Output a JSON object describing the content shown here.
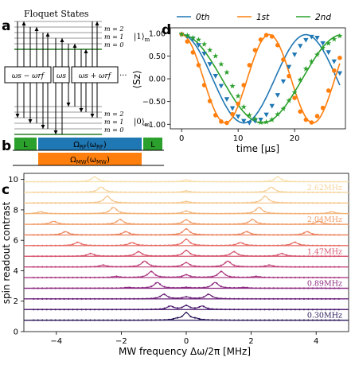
{
  "panels": {
    "a": {
      "letter": "a",
      "title": "Floquet States",
      "state_upper": "|1⟩",
      "state_upper_sub": "m",
      "state_lower": "|0⟩",
      "state_lower_sub": "m",
      "upper_levels": [
        "m = 2",
        "m = 1",
        "m = 0"
      ],
      "lower_levels": [
        "m = 2",
        "m = 1",
        "m = 0"
      ],
      "boxes": [
        "ωs − ωrf",
        "ωs",
        "ωs + ωrf"
      ],
      "ellipsis": "···"
    },
    "b": {
      "letter": "b",
      "left_label": "L",
      "right_label": "L",
      "rf_label": "ΩRF(ωRF)",
      "mw_label": "ΩMW(ωMW)",
      "colors": {
        "green": "#2ca02c",
        "blue": "#1f77b4",
        "orange": "#ff7f0e"
      }
    }
  },
  "chart_data": [
    {
      "panel": "d",
      "letter": "d",
      "type": "line",
      "xlabel": "time [μs]",
      "ylabel": "⟨Sz⟩",
      "xlim": [
        -2,
        29
      ],
      "ylim": [
        -1.1,
        1.12
      ],
      "xticks": [
        0,
        10,
        20
      ],
      "yticks": [
        1.0,
        0.5,
        0.0,
        -0.5,
        -1.0
      ],
      "ytick_labels": [
        "1.00",
        "0.50",
        "0.00",
        "−0.50",
        "−1.00"
      ],
      "legend_position": "top",
      "series": [
        {
          "name": "0th",
          "color": "#1f77b4",
          "marker": "triangle-down",
          "fit_period_us": 22,
          "points": {
            "x": [
              0,
              1,
              2,
              3,
              4,
              5,
              6,
              7,
              8,
              9,
              10,
              11,
              12,
              13,
              14,
              15,
              16,
              17,
              18,
              19,
              20,
              21,
              22,
              23,
              24,
              25,
              26,
              27,
              28
            ],
            "y": [
              0.97,
              0.93,
              0.88,
              0.74,
              0.55,
              0.32,
              0.06,
              -0.16,
              -0.45,
              -0.65,
              -0.83,
              -0.93,
              -0.97,
              -0.93,
              -0.9,
              -0.79,
              -0.6,
              -0.36,
              -0.06,
              0.26,
              0.53,
              0.72,
              0.85,
              0.92,
              0.9,
              0.78,
              0.58,
              0.38,
              0.12
            ]
          }
        },
        {
          "name": "1st",
          "color": "#ff7f0e",
          "marker": "circle",
          "fit_period_us": 15.5,
          "points": {
            "x": [
              0,
              1,
              2,
              3,
              4,
              5,
              6,
              7,
              8,
              9,
              10,
              11,
              12,
              13,
              14,
              15,
              16,
              17,
              18,
              19,
              20,
              21,
              22,
              23,
              24,
              25,
              26,
              27,
              28
            ],
            "y": [
              0.98,
              0.82,
              0.58,
              0.3,
              -0.14,
              -0.49,
              -0.8,
              -0.94,
              -0.97,
              -0.78,
              -0.55,
              -0.14,
              0.3,
              0.63,
              0.86,
              0.96,
              0.93,
              0.74,
              0.42,
              0.06,
              -0.42,
              -0.72,
              -0.9,
              -0.96,
              -0.82,
              -0.64,
              -0.26,
              0.18,
              0.46
            ]
          }
        },
        {
          "name": "2nd",
          "color": "#2ca02c",
          "marker": "star",
          "fit_period_us": 28.5,
          "points": {
            "x": [
              0,
              1,
              2,
              3,
              4,
              5,
              6,
              7,
              8,
              9,
              10,
              11,
              12,
              13,
              14,
              15,
              16,
              17,
              18,
              19,
              20,
              21,
              22,
              23,
              24,
              25,
              26,
              27,
              28
            ],
            "y": [
              0.98,
              0.95,
              0.9,
              0.86,
              0.76,
              0.63,
              0.5,
              0.32,
              0.14,
              -0.16,
              -0.38,
              -0.62,
              -0.8,
              -0.88,
              -0.96,
              -0.95,
              -0.9,
              -0.78,
              -0.66,
              -0.48,
              -0.3,
              -0.02,
              0.22,
              0.38,
              0.53,
              0.68,
              0.78,
              0.87,
              0.94
            ]
          }
        }
      ]
    },
    {
      "panel": "c",
      "letter": "c",
      "type": "line",
      "xlabel": "MW frequency Δω/2π [MHz]",
      "ylabel": "spin readout contrast",
      "xlim": [
        -5,
        5
      ],
      "ylim": [
        0,
        10.4
      ],
      "xticks": [
        -4,
        -2,
        0,
        2,
        4
      ],
      "yticks": [
        0,
        2,
        4,
        6,
        8,
        10
      ],
      "trace_offset_step": 0.7,
      "rf_amplitudes_mhz": [
        0.3,
        0.49,
        0.69,
        0.89,
        1.08,
        1.28,
        1.47,
        1.67,
        1.86,
        2.04,
        2.24,
        2.43,
        2.62,
        2.82
      ],
      "traces": [
        {
          "amp": 0.3,
          "peaks": [
            {
              "x": 0,
              "h": 0.48
            },
            {
              "x": -0.3,
              "h": 0.08
            },
            {
              "x": 0.3,
              "h": 0.08
            }
          ]
        },
        {
          "amp": 0.49,
          "peaks": [
            {
              "x": 0,
              "h": 0.25
            },
            {
              "x": -0.49,
              "h": 0.22
            },
            {
              "x": 0.49,
              "h": 0.22
            }
          ]
        },
        {
          "amp": 0.69,
          "peaks": [
            {
              "x": 0,
              "h": 0.12
            },
            {
              "x": -0.69,
              "h": 0.3
            },
            {
              "x": 0.69,
              "h": 0.3
            }
          ]
        },
        {
          "amp": 0.89,
          "peaks": [
            {
              "x": 0,
              "h": 0.05
            },
            {
              "x": -0.89,
              "h": 0.38
            },
            {
              "x": 0.89,
              "h": 0.38
            },
            {
              "x": -1.78,
              "h": 0.05
            },
            {
              "x": 1.78,
              "h": 0.05
            }
          ]
        },
        {
          "amp": 1.08,
          "peaks": [
            {
              "x": 0,
              "h": 0.18
            },
            {
              "x": -1.08,
              "h": 0.4
            },
            {
              "x": 1.08,
              "h": 0.4
            },
            {
              "x": -2.16,
              "h": 0.08
            },
            {
              "x": 2.16,
              "h": 0.08
            }
          ]
        },
        {
          "amp": 1.28,
          "peaks": [
            {
              "x": 0,
              "h": 0.28
            },
            {
              "x": -1.28,
              "h": 0.38
            },
            {
              "x": 1.28,
              "h": 0.38
            },
            {
              "x": -2.56,
              "h": 0.12
            },
            {
              "x": 2.56,
              "h": 0.12
            }
          ]
        },
        {
          "amp": 1.47,
          "peaks": [
            {
              "x": 0,
              "h": 0.38
            },
            {
              "x": -1.47,
              "h": 0.3
            },
            {
              "x": 1.47,
              "h": 0.3
            },
            {
              "x": -2.94,
              "h": 0.18
            },
            {
              "x": 2.94,
              "h": 0.18
            }
          ]
        },
        {
          "amp": 1.67,
          "peaks": [
            {
              "x": 0,
              "h": 0.42
            },
            {
              "x": -1.67,
              "h": 0.2
            },
            {
              "x": 1.67,
              "h": 0.2
            },
            {
              "x": -3.34,
              "h": 0.22
            },
            {
              "x": 3.34,
              "h": 0.22
            }
          ]
        },
        {
          "amp": 1.86,
          "peaks": [
            {
              "x": 0,
              "h": 0.4
            },
            {
              "x": -1.86,
              "h": 0.22
            },
            {
              "x": 1.86,
              "h": 0.22
            },
            {
              "x": -3.72,
              "h": 0.22
            },
            {
              "x": 3.72,
              "h": 0.22
            }
          ]
        },
        {
          "amp": 2.04,
          "peaks": [
            {
              "x": 0,
              "h": 0.3
            },
            {
              "x": -2.04,
              "h": 0.32
            },
            {
              "x": 2.04,
              "h": 0.32
            },
            {
              "x": -4.08,
              "h": 0.2
            },
            {
              "x": 4.08,
              "h": 0.2
            }
          ]
        },
        {
          "amp": 2.24,
          "peaks": [
            {
              "x": 0,
              "h": 0.18
            },
            {
              "x": -2.24,
              "h": 0.42
            },
            {
              "x": 2.24,
              "h": 0.42
            },
            {
              "x": -4.48,
              "h": 0.12
            },
            {
              "x": 4.48,
              "h": 0.12
            }
          ]
        },
        {
          "amp": 2.43,
          "peaks": [
            {
              "x": 0,
              "h": 0.1
            },
            {
              "x": -2.43,
              "h": 0.45
            },
            {
              "x": 2.43,
              "h": 0.45
            }
          ]
        },
        {
          "amp": 2.62,
          "peaks": [
            {
              "x": 0,
              "h": 0.1
            },
            {
              "x": -2.62,
              "h": 0.35
            },
            {
              "x": 2.62,
              "h": 0.35
            }
          ]
        },
        {
          "amp": 2.82,
          "peaks": [
            {
              "x": 0,
              "h": 0.12
            },
            {
              "x": -2.82,
              "h": 0.32
            },
            {
              "x": 2.82,
              "h": 0.32
            }
          ]
        }
      ],
      "colormap": [
        "#2a1858",
        "#4a1a6e",
        "#6b2279",
        "#8b2a80",
        "#a83580",
        "#c04378",
        "#d6556e",
        "#e56b63",
        "#ec8460",
        "#f09d68",
        "#f3b47a",
        "#f5c68b",
        "#f6d39c",
        "#f8e0ad"
      ],
      "annotations": [
        {
          "text": "0.30MHz",
          "trace": 0
        },
        {
          "text": "0.89MHz",
          "trace": 3
        },
        {
          "text": "1.47MHz",
          "trace": 6
        },
        {
          "text": "2.04MHz",
          "trace": 9
        },
        {
          "text": "2.62MHz",
          "trace": 12
        }
      ]
    }
  ]
}
